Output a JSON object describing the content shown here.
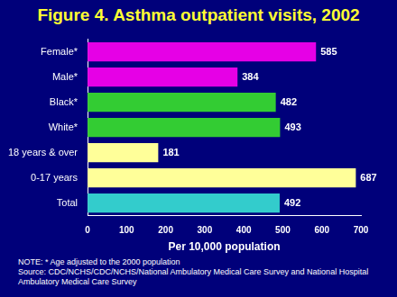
{
  "chart_data": {
    "type": "bar",
    "title": "Figure 4. Asthma outpatient visits, 2002",
    "orientation": "horizontal",
    "categories": [
      "Female*",
      "Male*",
      "Black*",
      "White*",
      "18 years & over",
      "0-17 years",
      "Total"
    ],
    "values": [
      585,
      384,
      482,
      493,
      181,
      687,
      492
    ],
    "colors": [
      "#e600e6",
      "#e600e6",
      "#33cc33",
      "#33cc33",
      "#ffff99",
      "#ffff99",
      "#33cccc"
    ],
    "x_label": "Per 10,000 population",
    "xlim": [
      0,
      700
    ],
    "xticks": [
      0,
      100,
      200,
      300,
      400,
      500,
      600,
      700
    ],
    "grid": false,
    "data_labels": true,
    "annotations": [
      "NOTE: * Age adjusted to the 2000 population",
      "Source: CDC/NCHS/CDC/NCHS/National Ambulatory Medical Care Survey and National Hospital Ambulatory Medical Care Survey"
    ]
  }
}
